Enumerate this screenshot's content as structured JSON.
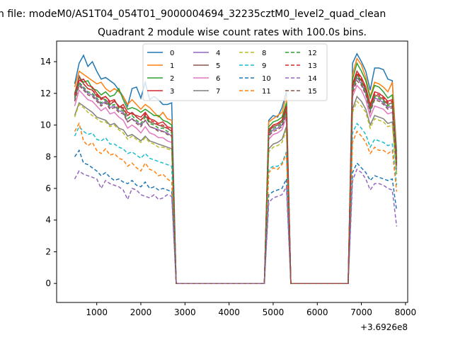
{
  "chart_data": {
    "type": "line",
    "suptitle": "n file: modeM0/AS1T04_054T01_9000004694_32235cztM0_level2_quad_clean",
    "title": "Quadrant 2 module wise count rates with 100.0s bins.",
    "x_offset_label": "+3.6926e8",
    "xlim": [
      90,
      8050
    ],
    "ylim": [
      -1.2,
      15.3
    ],
    "x_ticks": [
      1000,
      2000,
      3000,
      4000,
      5000,
      6000,
      7000,
      8000
    ],
    "y_ticks": [
      0,
      2,
      4,
      6,
      8,
      10,
      12,
      14
    ],
    "grid": false,
    "legend_position": "upper-center",
    "x": [
      500,
      600,
      700,
      800,
      900,
      1000,
      1100,
      1200,
      1300,
      1400,
      1500,
      1600,
      1700,
      1800,
      1900,
      2000,
      2100,
      2200,
      2300,
      2400,
      2500,
      2600,
      2700,
      2800,
      2900,
      3000,
      3100,
      3200,
      3300,
      3400,
      3500,
      3600,
      3700,
      3800,
      3900,
      4000,
      4100,
      4200,
      4300,
      4400,
      4500,
      4600,
      4700,
      4800,
      4900,
      5000,
      5100,
      5200,
      5300,
      5400,
      5500,
      5600,
      5700,
      5800,
      5900,
      6000,
      6100,
      6200,
      6300,
      6400,
      6500,
      6600,
      6700,
      6800,
      6900,
      7000,
      7100,
      7200,
      7300,
      7400,
      7500,
      7600,
      7700,
      7800,
      7900
    ],
    "series": [
      {
        "name": "0",
        "color": "#1f77b4",
        "dash": false,
        "hi": [
          12.6,
          13.9,
          14.4,
          13.7,
          14.0,
          13.4,
          12.9,
          13.0,
          12.8,
          12.6,
          12.2,
          11.8,
          11.2,
          12.3,
          12.4,
          11.7,
          12.7,
          11.6,
          11.8,
          11.6,
          11.3,
          11.3,
          11.4
        ],
        "mid": [
          10.3,
          10.6,
          10.5,
          11.1,
          12.1
        ],
        "hi2": [
          13.9,
          14.5,
          14.0,
          13.4,
          12.2,
          13.6,
          13.6,
          13.5,
          12.9,
          12.8,
          8.3
        ]
      },
      {
        "name": "1",
        "color": "#ff7f0e",
        "dash": false,
        "hi": [
          12.4,
          13.4,
          13.2,
          13.0,
          12.8,
          12.6,
          12.7,
          12.3,
          12.1,
          12.3,
          12.1,
          11.8,
          11.3,
          11.6,
          11.3,
          11.0,
          11.3,
          11.1,
          10.8,
          10.5,
          10.8,
          10.4,
          10.3
        ],
        "mid": [
          10.2,
          10.4,
          10.6,
          10.8,
          11.8
        ],
        "hi2": [
          13.2,
          14.2,
          13.8,
          13.0,
          11.8,
          12.7,
          12.6,
          12.4,
          12.1,
          12.7,
          8.0
        ]
      },
      {
        "name": "2",
        "color": "#2ca02c",
        "dash": false,
        "hi": [
          12.0,
          13.0,
          12.7,
          12.8,
          12.3,
          12.2,
          11.9,
          12.1,
          11.8,
          11.9,
          12.3,
          11.6,
          11.0,
          11.1,
          11.0,
          10.8,
          11.0,
          10.8,
          10.6,
          10.6,
          10.3,
          10.2,
          10.0
        ],
        "mid": [
          9.9,
          10.2,
          10.3,
          10.5,
          11.4
        ],
        "hi2": [
          12.9,
          13.9,
          13.4,
          12.8,
          11.7,
          12.5,
          12.4,
          12.1,
          11.7,
          11.9,
          7.9
        ]
      },
      {
        "name": "3",
        "color": "#d62728",
        "dash": false,
        "hi": [
          11.8,
          12.8,
          12.9,
          12.5,
          12.4,
          12.0,
          11.7,
          11.8,
          11.5,
          11.6,
          11.1,
          11.3,
          10.8,
          10.7,
          10.6,
          10.5,
          10.8,
          10.4,
          10.3,
          10.1,
          10.2,
          9.9,
          9.8
        ],
        "mid": [
          9.7,
          10.0,
          10.1,
          10.3,
          11.2
        ],
        "hi2": [
          12.6,
          13.4,
          13.0,
          12.4,
          11.3,
          12.1,
          12.0,
          11.8,
          11.5,
          11.6,
          7.7
        ]
      },
      {
        "name": "4",
        "color": "#9467bd",
        "dash": false,
        "hi": [
          11.6,
          12.6,
          12.3,
          12.0,
          11.9,
          11.6,
          11.3,
          11.5,
          11.1,
          11.2,
          10.9,
          10.8,
          10.2,
          10.4,
          10.2,
          10.0,
          10.3,
          9.9,
          9.8,
          9.7,
          9.6,
          9.5,
          9.3
        ],
        "mid": [
          9.4,
          9.7,
          9.8,
          10.0,
          10.8
        ],
        "hi2": [
          12.2,
          13.0,
          12.6,
          12.0,
          10.9,
          11.7,
          11.6,
          11.4,
          11.1,
          11.2,
          7.4
        ]
      },
      {
        "name": "5",
        "color": "#8c564b",
        "dash": false,
        "hi": [
          11.9,
          13.1,
          12.6,
          12.3,
          12.2,
          11.8,
          11.7,
          11.6,
          11.3,
          11.5,
          11.2,
          11.0,
          10.6,
          10.8,
          10.5,
          10.3,
          10.6,
          10.2,
          10.1,
          10.0,
          9.9,
          9.8,
          9.6
        ],
        "mid": [
          9.6,
          9.9,
          10.0,
          10.2,
          11.0
        ],
        "hi2": [
          12.4,
          13.2,
          12.8,
          12.2,
          11.1,
          11.9,
          11.8,
          11.6,
          11.3,
          11.4,
          7.6
        ]
      },
      {
        "name": "6",
        "color": "#e377c2",
        "dash": false,
        "hi": [
          11.2,
          12.2,
          11.9,
          11.6,
          11.5,
          11.2,
          10.9,
          11.1,
          10.7,
          10.8,
          10.5,
          10.3,
          9.8,
          10.0,
          9.8,
          9.5,
          9.9,
          9.5,
          9.4,
          9.2,
          9.2,
          9.0,
          8.9
        ],
        "mid": [
          9.1,
          9.4,
          9.5,
          9.7,
          10.5
        ],
        "hi2": [
          11.8,
          12.5,
          12.2,
          11.6,
          10.5,
          11.2,
          11.1,
          11.0,
          10.7,
          10.8,
          7.2
        ]
      },
      {
        "name": "7",
        "color": "#7f7f7f",
        "dash": false,
        "hi": [
          10.6,
          11.4,
          11.2,
          11.0,
          10.8,
          10.5,
          10.4,
          10.3,
          10.0,
          10.1,
          9.8,
          9.7,
          9.3,
          9.4,
          9.2,
          9.0,
          9.3,
          9.0,
          8.9,
          8.8,
          8.7,
          8.6,
          8.5
        ],
        "mid": [
          8.5,
          8.8,
          8.9,
          9.1,
          9.9
        ],
        "hi2": [
          11.0,
          11.8,
          11.5,
          11.0,
          10.0,
          10.6,
          10.5,
          10.4,
          10.1,
          10.2,
          6.9
        ]
      },
      {
        "name": "8",
        "color": "#bcbd22",
        "dash": true,
        "hi": [
          10.5,
          11.3,
          11.1,
          10.8,
          10.6,
          10.4,
          10.2,
          10.2,
          9.9,
          10.0,
          9.7,
          9.5,
          9.1,
          9.3,
          9.1,
          8.9,
          9.2,
          8.9,
          8.8,
          8.6,
          8.6,
          8.5,
          8.4
        ],
        "mid": [
          8.3,
          8.6,
          8.7,
          8.9,
          9.7
        ],
        "hi2": [
          10.8,
          11.5,
          11.2,
          10.8,
          9.8,
          10.4,
          10.3,
          10.2,
          9.9,
          10.0,
          6.8
        ]
      },
      {
        "name": "9",
        "color": "#17becf",
        "dash": true,
        "hi": [
          9.3,
          9.9,
          9.6,
          9.4,
          9.5,
          9.1,
          9.0,
          9.2,
          8.8,
          8.8,
          8.6,
          8.5,
          8.2,
          8.3,
          8.1,
          7.9,
          8.2,
          7.9,
          7.8,
          7.7,
          7.6,
          7.5,
          7.4
        ],
        "mid": [
          7.2,
          7.4,
          7.4,
          7.6,
          8.3
        ],
        "hi2": [
          9.5,
          10.1,
          9.8,
          9.4,
          8.6,
          9.1,
          9.0,
          8.9,
          8.7,
          8.8,
          6.2
        ]
      },
      {
        "name": "10",
        "color": "#1f77b4",
        "dash": true,
        "hi": [
          8.0,
          8.4,
          7.6,
          7.5,
          7.3,
          7.1,
          6.8,
          7.0,
          6.7,
          6.5,
          6.6,
          6.4,
          6.3,
          6.5,
          6.2,
          6.1,
          6.4,
          6.0,
          6.1,
          5.9,
          6.0,
          5.9,
          5.8
        ],
        "mid": [
          5.6,
          5.8,
          5.9,
          6.0,
          6.6
        ],
        "hi2": [
          7.0,
          7.6,
          7.3,
          7.0,
          6.5,
          6.8,
          6.7,
          6.6,
          6.5,
          6.6,
          4.6
        ]
      },
      {
        "name": "11",
        "color": "#ff7f0e",
        "dash": true,
        "hi": [
          9.6,
          10.1,
          9.0,
          8.7,
          8.9,
          8.4,
          8.2,
          8.5,
          8.1,
          8.2,
          7.9,
          7.8,
          7.4,
          7.6,
          7.3,
          7.1,
          7.6,
          7.2,
          7.1,
          6.8,
          6.9,
          6.6,
          6.4
        ],
        "mid": [
          7.0,
          7.3,
          7.2,
          7.5,
          8.2
        ],
        "hi2": [
          8.9,
          9.6,
          9.3,
          8.9,
          8.2,
          8.6,
          8.4,
          8.4,
          8.2,
          8.4,
          5.8
        ]
      },
      {
        "name": "12",
        "color": "#2ca02c",
        "dash": true,
        "hi": [
          11.7,
          12.7,
          12.4,
          12.1,
          12.0,
          11.7,
          11.4,
          11.6,
          11.2,
          11.3,
          11.0,
          10.9,
          10.4,
          10.6,
          10.3,
          10.1,
          10.5,
          10.1,
          10.0,
          9.8,
          9.8,
          9.6,
          9.5
        ],
        "mid": [
          9.5,
          9.8,
          9.9,
          10.1,
          10.9
        ],
        "hi2": [
          12.3,
          13.1,
          12.7,
          12.1,
          11.0,
          11.8,
          11.7,
          11.5,
          11.2,
          11.3,
          7.5
        ]
      },
      {
        "name": "13",
        "color": "#d62728",
        "dash": true,
        "hi": [
          11.9,
          12.9,
          12.6,
          12.3,
          12.2,
          11.9,
          11.6,
          11.8,
          11.4,
          11.5,
          11.2,
          11.1,
          10.6,
          10.8,
          10.5,
          10.3,
          10.7,
          10.3,
          10.2,
          10.0,
          10.0,
          9.8,
          9.7
        ],
        "mid": [
          9.7,
          10.0,
          10.1,
          10.3,
          11.1
        ],
        "hi2": [
          12.5,
          13.3,
          12.9,
          12.3,
          11.2,
          12.0,
          11.9,
          11.7,
          11.4,
          11.5,
          7.6
        ]
      },
      {
        "name": "14",
        "color": "#9467bd",
        "dash": true,
        "hi": [
          6.6,
          7.1,
          6.9,
          6.8,
          6.7,
          6.6,
          6.0,
          6.5,
          6.3,
          6.2,
          6.1,
          5.9,
          5.3,
          6.0,
          5.9,
          5.6,
          5.5,
          5.4,
          5.6,
          5.3,
          5.4,
          5.6,
          5.5
        ],
        "mid": [
          5.1,
          5.4,
          5.5,
          5.6,
          6.1
        ],
        "hi2": [
          6.5,
          7.2,
          7.0,
          6.6,
          5.9,
          6.3,
          6.3,
          6.2,
          6.0,
          5.9,
          3.6
        ]
      },
      {
        "name": "15",
        "color": "#8c564b",
        "dash": true,
        "hi": [
          11.5,
          12.5,
          12.2,
          11.9,
          11.8,
          11.5,
          11.2,
          11.4,
          11.0,
          11.1,
          10.8,
          10.7,
          10.2,
          10.4,
          10.1,
          9.9,
          10.3,
          9.9,
          9.8,
          9.6,
          9.6,
          9.4,
          9.3
        ],
        "mid": [
          9.3,
          9.6,
          9.7,
          9.9,
          10.7
        ],
        "hi2": [
          12.0,
          12.8,
          12.5,
          11.9,
          10.8,
          11.6,
          11.5,
          11.3,
          11.0,
          11.1,
          7.3
        ]
      }
    ]
  }
}
